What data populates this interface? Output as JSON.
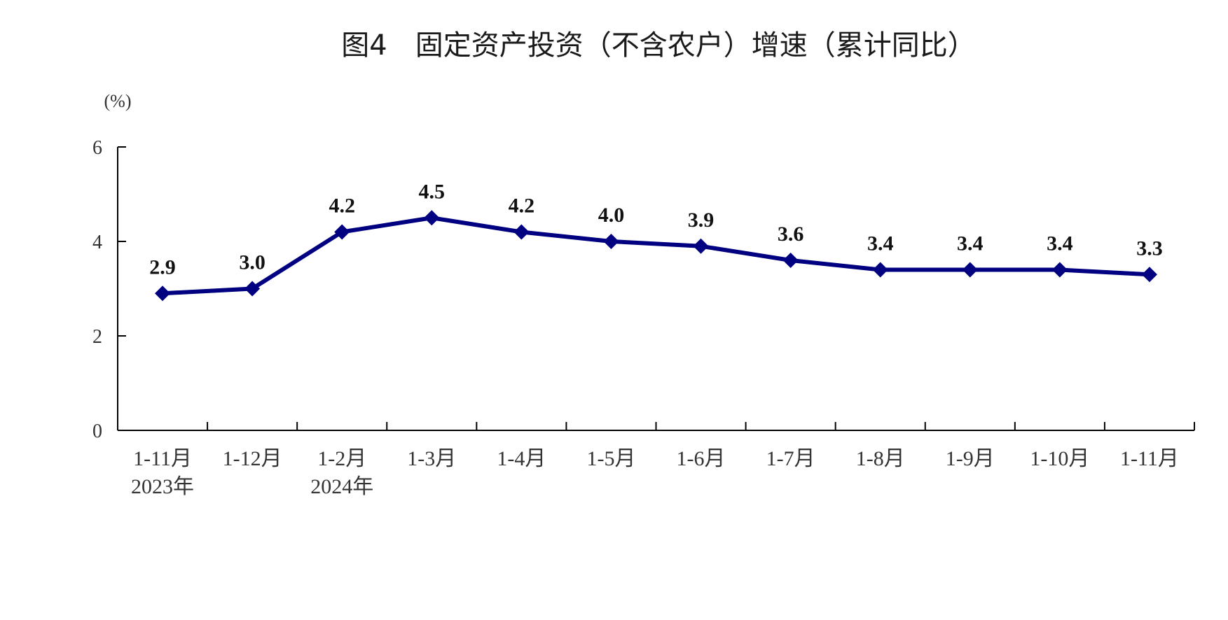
{
  "chart_data": {
    "type": "line",
    "title": "图4　固定资产投资（不含农户）增速（累计同比）",
    "unit": "(%)",
    "categories": [
      "1-11月",
      "1-12月",
      "1-2月",
      "1-3月",
      "1-4月",
      "1-5月",
      "1-6月",
      "1-7月",
      "1-8月",
      "1-9月",
      "1-10月",
      "1-11月"
    ],
    "year_labels": [
      {
        "category_index": 0,
        "label": "2023年"
      },
      {
        "category_index": 2,
        "label": "2024年"
      }
    ],
    "series": [
      {
        "values": [
          2.9,
          3.0,
          4.2,
          4.5,
          4.2,
          4.0,
          3.9,
          3.6,
          3.4,
          3.4,
          3.4,
          3.3
        ],
        "data_labels": [
          "2.9",
          "3.0",
          "4.2",
          "4.5",
          "4.2",
          "4.0",
          "3.9",
          "3.6",
          "3.4",
          "3.4",
          "3.4",
          "3.3"
        ],
        "color": "#000080",
        "marker": "diamond"
      }
    ],
    "ylim": [
      0,
      6
    ],
    "y_ticks": [
      0,
      2,
      4,
      6
    ],
    "grid": false,
    "legend": "none"
  }
}
